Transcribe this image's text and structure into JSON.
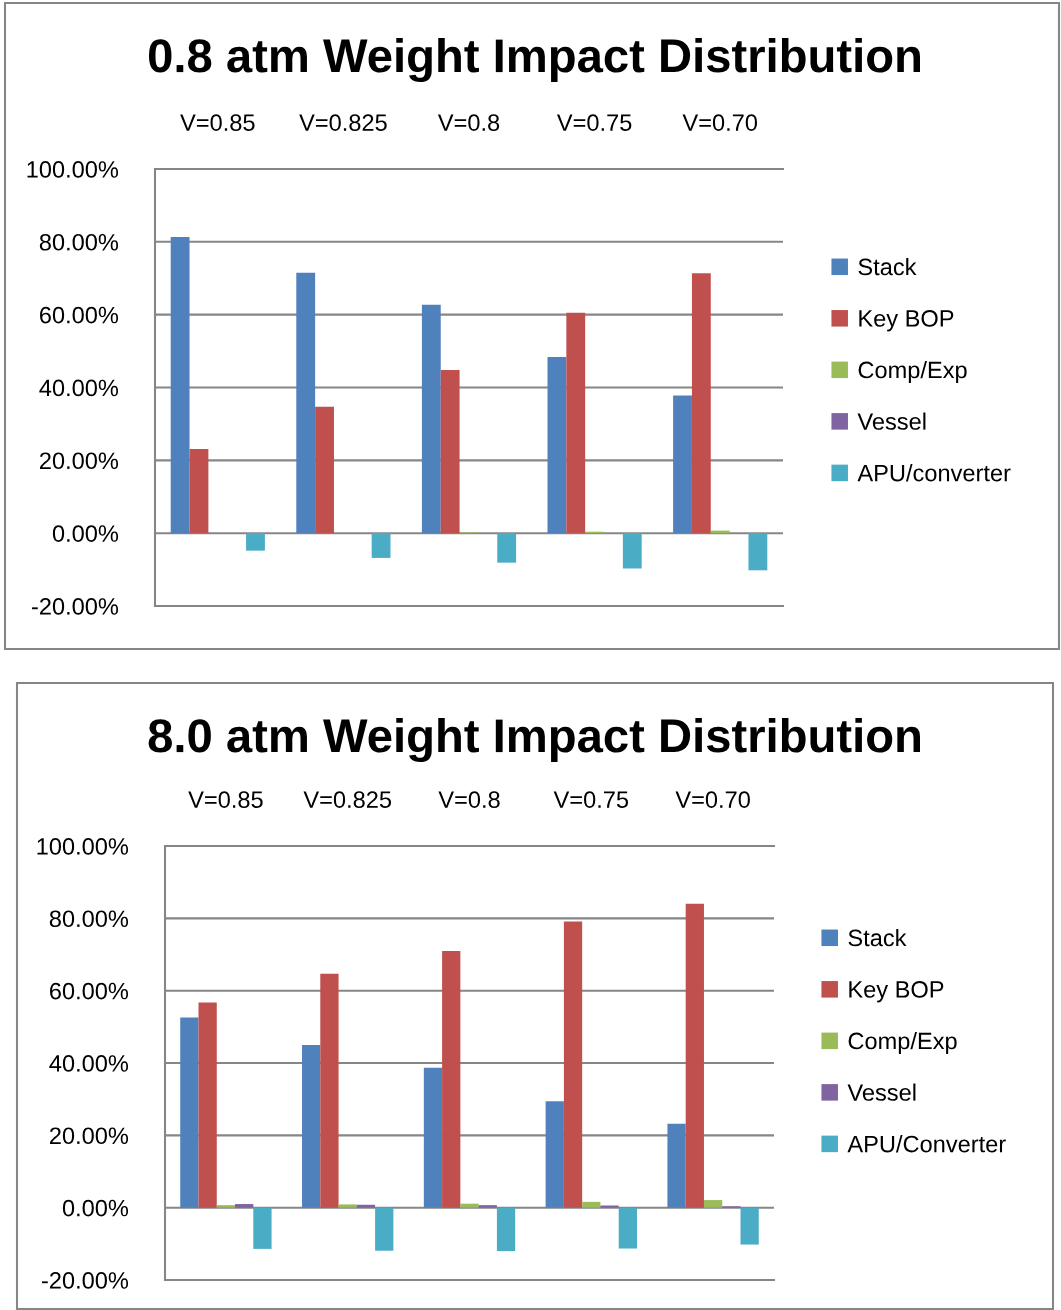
{
  "chart_data": [
    {
      "type": "bar",
      "title": "0.8 atm Weight Impact Distribution",
      "categories": [
        "V=0.85",
        "V=0.825",
        "V=0.8",
        "V=0.75",
        "V=0.70"
      ],
      "series": [
        {
          "name": "Stack",
          "color": "#4f81bd",
          "values": [
            81.3,
            71.5,
            62.7,
            48.4,
            37.8
          ]
        },
        {
          "name": "Key BOP",
          "color": "#c0504d",
          "values": [
            23.1,
            34.7,
            44.8,
            60.5,
            71.4
          ]
        },
        {
          "name": "Comp/Exp",
          "color": "#9bbb59",
          "values": [
            0,
            0,
            0.2,
            0.4,
            0.7
          ]
        },
        {
          "name": "Vessel",
          "color": "#8064a2",
          "values": [
            0,
            0,
            0,
            0,
            0
          ]
        },
        {
          "name": "APU/converter",
          "color": "#4bacc6",
          "values": [
            -4.8,
            -6.8,
            -8.1,
            -9.7,
            -10.2
          ]
        }
      ],
      "ylim": [
        -20,
        100
      ],
      "yticks": [
        {
          "value": -20,
          "label": "-20.00%"
        },
        {
          "value": 0,
          "label": "0.00%"
        },
        {
          "value": 20,
          "label": "20.00%"
        },
        {
          "value": 40,
          "label": "40.00%"
        },
        {
          "value": 60,
          "label": "60.00%"
        },
        {
          "value": 80,
          "label": "80.00%"
        },
        {
          "value": 100,
          "label": "100.00%"
        }
      ],
      "grid": "y",
      "legend": "right"
    },
    {
      "type": "bar",
      "title": "8.0 atm Weight Impact Distribution",
      "categories": [
        "V=0.85",
        "V=0.825",
        "V=0.8",
        "V=0.75",
        "V=0.70"
      ],
      "series": [
        {
          "name": "Stack",
          "color": "#4f81bd",
          "values": [
            52.6,
            45.0,
            38.7,
            29.4,
            23.2
          ]
        },
        {
          "name": "Key BOP",
          "color": "#c0504d",
          "values": [
            56.7,
            64.7,
            71.0,
            79.1,
            84.0
          ]
        },
        {
          "name": "Comp/Exp",
          "color": "#9bbb59",
          "values": [
            0.7,
            0.9,
            1.1,
            1.6,
            2.1
          ]
        },
        {
          "name": "Vessel",
          "color": "#8064a2",
          "values": [
            1.0,
            0.8,
            0.7,
            0.6,
            0.4
          ]
        },
        {
          "name": "APU/Converter",
          "color": "#4bacc6",
          "values": [
            -11.4,
            -11.9,
            -12.0,
            -11.3,
            -10.2
          ]
        }
      ],
      "ylim": [
        -20,
        100
      ],
      "yticks": [
        {
          "value": -20,
          "label": "-20.00%"
        },
        {
          "value": 0,
          "label": "0.00%"
        },
        {
          "value": 20,
          "label": "20.00%"
        },
        {
          "value": 40,
          "label": "40.00%"
        },
        {
          "value": 60,
          "label": "60.00%"
        },
        {
          "value": 80,
          "label": "80.00%"
        },
        {
          "value": 100,
          "label": "100.00%"
        }
      ],
      "grid": "y",
      "legend": "right"
    }
  ]
}
